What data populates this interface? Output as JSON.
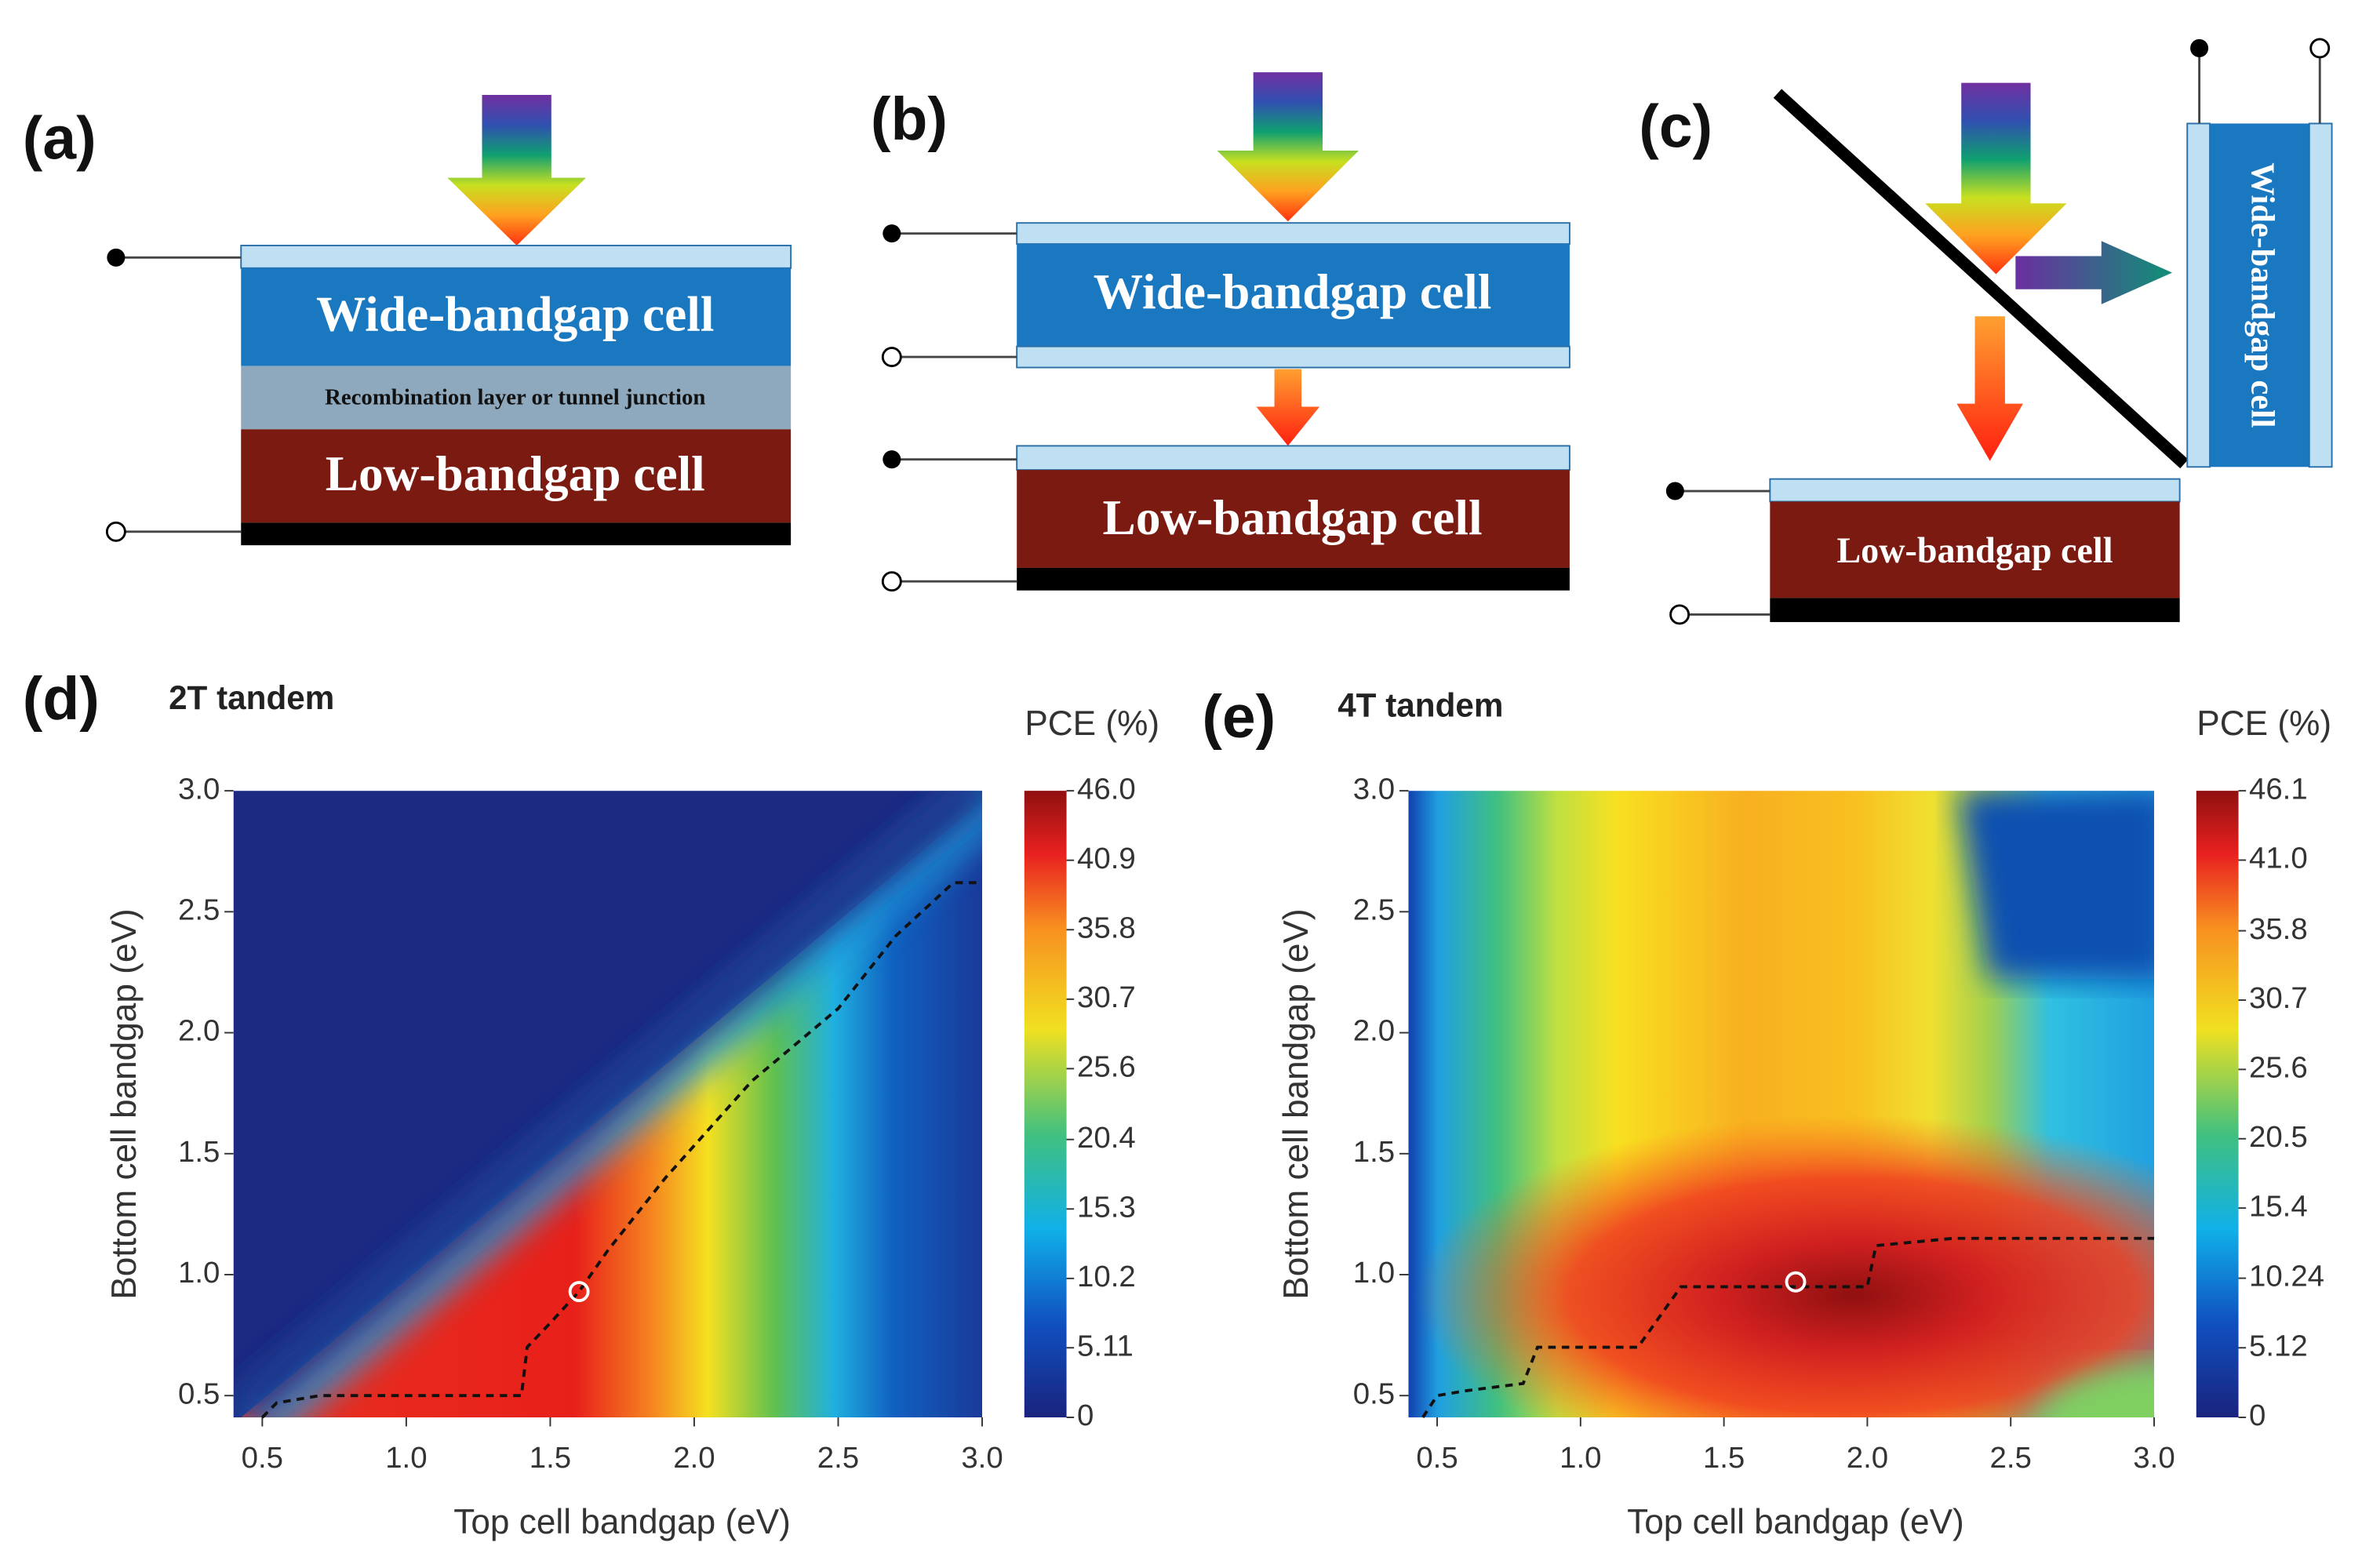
{
  "diagrams": {
    "a": {
      "label": "(a)",
      "top_cell": "Wide-bandgap cell",
      "middle_layer": "Recombination layer or tunnel junction",
      "bottom_cell": "Low-bandgap cell"
    },
    "b": {
      "label": "(b)",
      "top_cell": "Wide-bandgap cell",
      "bottom_cell": "Low-bandgap cell"
    },
    "c": {
      "label": "(c)",
      "top_cell": "Wide-bandgap cell",
      "bottom_cell": "Low-bandgap  cell"
    }
  },
  "chart_data": [
    {
      "type": "heatmap",
      "panel_label": "(d)",
      "title": "2T tandem",
      "x_label": "Top cell bandgap (eV)",
      "y_label": "Bottom cell bandgap (eV)",
      "colorbar_label": "PCE (%)",
      "xlim": [
        0.4,
        3.0
      ],
      "xticks": [
        0.5,
        {
          "value": 1,
          "label": "1.0"
        },
        1.5,
        {
          "value": 2,
          "label": "2.0"
        },
        2.5,
        {
          "value": 3,
          "label": "3.0"
        }
      ],
      "ylim": [
        0.41,
        3.0
      ],
      "yticks": [
        0.5,
        {
          "value": 1,
          "label": "1.0"
        },
        1.5,
        {
          "value": 2,
          "label": "2.0"
        },
        2.5,
        {
          "value": 3,
          "label": "3.0"
        }
      ],
      "clim": [
        0,
        46
      ],
      "cticks": [
        0,
        5.11,
        10.2,
        15.3,
        20.4,
        25.6,
        30.7,
        35.8,
        40.9,
        {
          "value": 46,
          "label": "46.0"
        }
      ],
      "optimal_path": {
        "x": [
          0.5,
          0.55,
          0.7,
          1.4,
          1.42,
          1.5,
          1.6,
          1.7,
          1.9,
          2.2,
          2.5,
          2.7,
          2.9,
          3.0
        ],
        "y": [
          0.41,
          0.47,
          0.5,
          0.5,
          0.7,
          0.8,
          0.93,
          1.1,
          1.4,
          1.8,
          2.1,
          2.4,
          2.62,
          2.62
        ]
      },
      "optimum": {
        "x": 1.6,
        "y": 0.93
      }
    },
    {
      "type": "heatmap",
      "panel_label": "(e)",
      "title": "4T tandem",
      "x_label": "Top cell bandgap (eV)",
      "y_label": "Bottom cell bandgap (eV)",
      "colorbar_label": "PCE (%)",
      "xlim": [
        0.4,
        3.0
      ],
      "xticks": [
        0.5,
        {
          "value": 1,
          "label": "1.0"
        },
        1.5,
        {
          "value": 2,
          "label": "2.0"
        },
        2.5,
        {
          "value": 3,
          "label": "3.0"
        }
      ],
      "ylim": [
        0.41,
        3.0
      ],
      "yticks": [
        0.5,
        {
          "value": 1,
          "label": "1.0"
        },
        1.5,
        {
          "value": 2,
          "label": "2.0"
        },
        2.5,
        {
          "value": 3,
          "label": "3.0"
        }
      ],
      "clim": [
        0,
        46.1
      ],
      "cticks": [
        0,
        5.12,
        10.24,
        15.4,
        20.5,
        25.6,
        30.7,
        35.8,
        {
          "value": 41,
          "label": "41.0"
        },
        46.1
      ],
      "optimal_path": {
        "x": [
          0.45,
          0.5,
          0.6,
          0.8,
          0.85,
          1.2,
          1.35,
          1.65,
          2.0,
          2.03,
          2.3,
          3.0
        ],
        "y": [
          0.41,
          0.5,
          0.52,
          0.55,
          0.7,
          0.7,
          0.95,
          0.95,
          0.95,
          1.12,
          1.15,
          1.15
        ]
      },
      "optimum": {
        "x": 1.75,
        "y": 0.97
      }
    }
  ]
}
